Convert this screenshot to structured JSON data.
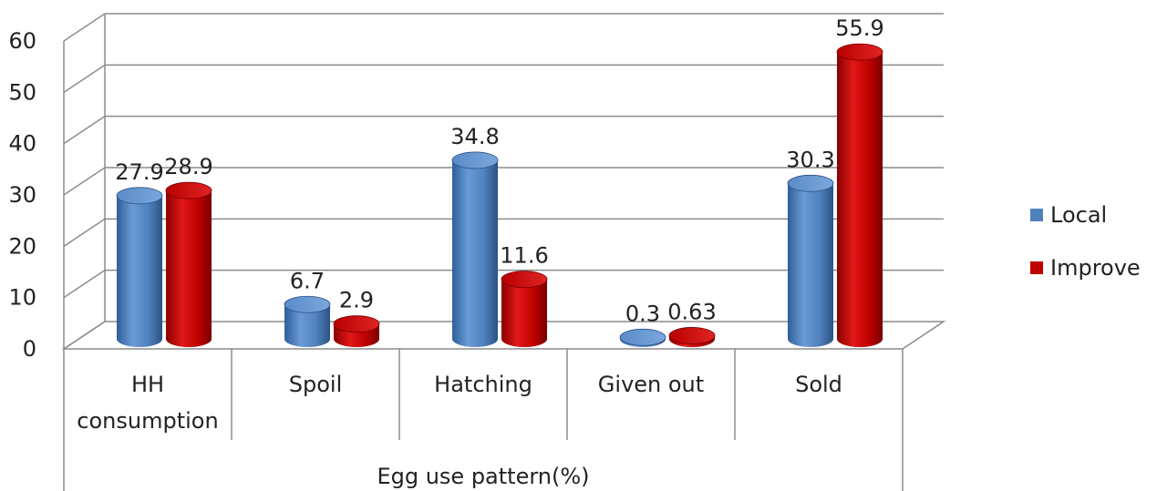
{
  "chart_data": {
    "type": "bar",
    "title": "",
    "xlabel": "Egg use pattern(%)",
    "ylabel": "",
    "ylim": [
      0,
      60
    ],
    "yticks": [
      0,
      10,
      20,
      30,
      40,
      50,
      60
    ],
    "grid": true,
    "legend_position": "right",
    "categories": [
      [
        "HH",
        "consumption"
      ],
      [
        "Spoil"
      ],
      [
        "Hatching"
      ],
      [
        "Given out"
      ],
      [
        "Sold"
      ]
    ],
    "series": [
      {
        "name": "Local",
        "color": "#4F81BD",
        "values": [
          27.9,
          6.7,
          34.8,
          0.3,
          30.3
        ],
        "labels": [
          "27.9",
          "6.7",
          "34.8",
          "0.3",
          "30.3"
        ]
      },
      {
        "name": "Improve",
        "color": "#C00000",
        "values": [
          28.9,
          2.9,
          11.6,
          0.63,
          55.9
        ],
        "labels": [
          "28.9",
          "2.9",
          "11.6",
          "0.63",
          "55.9"
        ]
      }
    ]
  }
}
